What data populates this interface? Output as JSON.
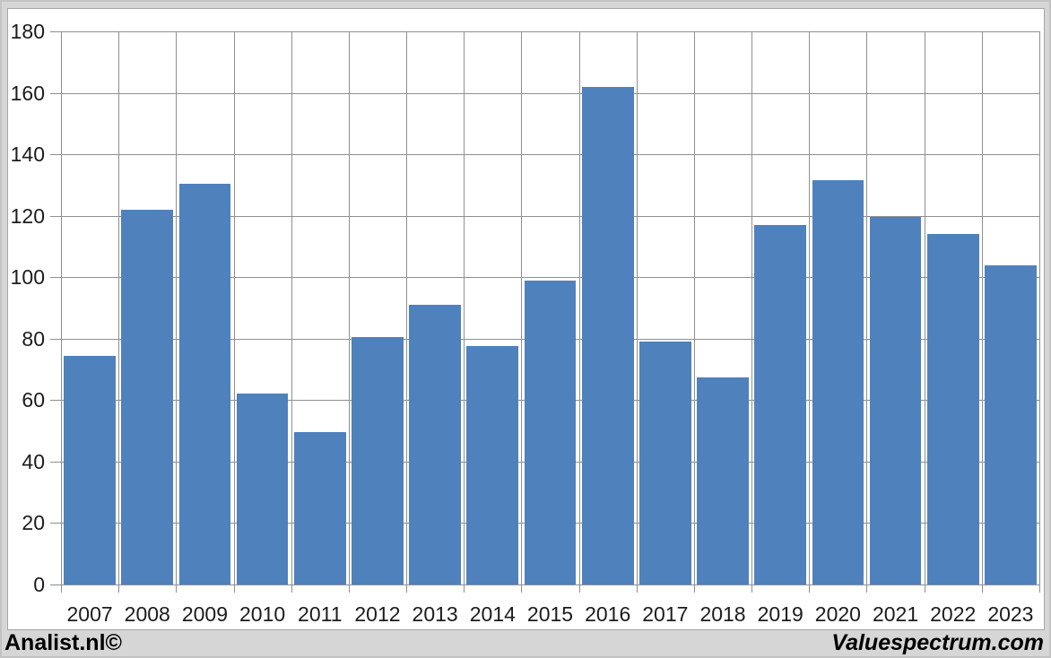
{
  "chart_data": {
    "type": "bar",
    "categories": [
      "2007",
      "2008",
      "2009",
      "2010",
      "2011",
      "2012",
      "2013",
      "2014",
      "2015",
      "2016",
      "2017",
      "2018",
      "2019",
      "2020",
      "2021",
      "2022",
      "2023"
    ],
    "values": [
      74.5,
      122,
      130.5,
      62,
      49.5,
      80.5,
      91,
      77.5,
      99,
      162,
      79,
      67.5,
      117,
      131.5,
      119.5,
      114,
      104
    ],
    "title": "",
    "xlabel": "",
    "ylabel": "",
    "ylim": [
      0,
      180
    ],
    "ytick_step": 20,
    "grid": true,
    "legend_position": "none",
    "bar_color": "#4f81bd",
    "gridline_color": "#8f8f8f",
    "plot_background": "#ffffff",
    "outer_background": "#d6d6d6"
  },
  "footer": {
    "left": "Analist.nl©",
    "right": "Valuespectrum.com"
  }
}
